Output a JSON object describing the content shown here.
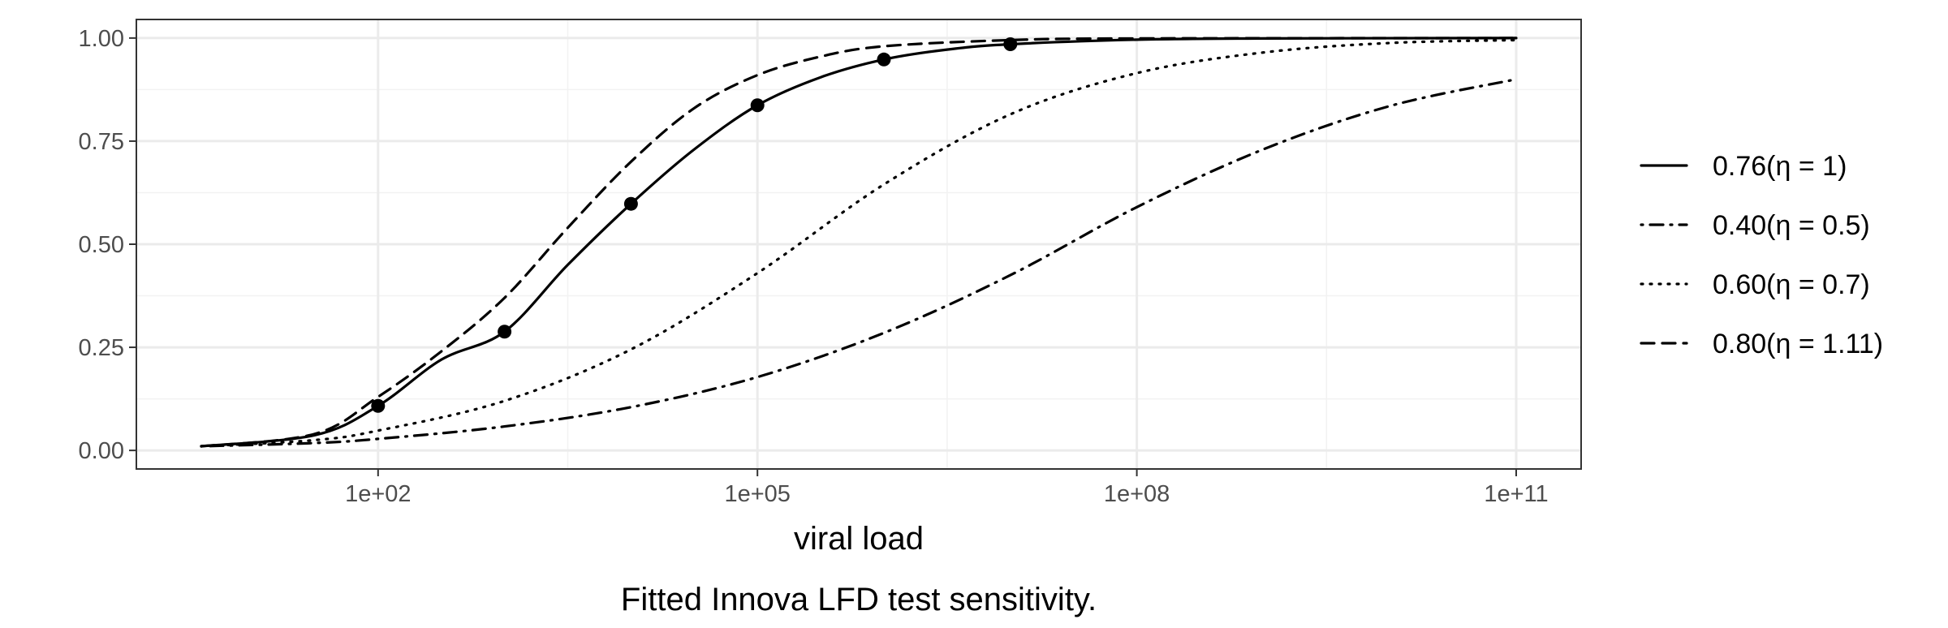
{
  "caption": "Fitted Innova LFD test sensitivity.",
  "chart_data": {
    "type": "line",
    "title": "",
    "xlabel": "viral load",
    "ylabel": "",
    "x_scale": "log10",
    "xlim": [
      4.0,
      100000000000.0
    ],
    "ylim": [
      0.0,
      1.0
    ],
    "x_ticks": [
      100,
      100000,
      100000000,
      100000000000
    ],
    "x_tick_labels": [
      "1e+02",
      "1e+05",
      "1e+08",
      "1e+11"
    ],
    "y_ticks": [
      0.0,
      0.25,
      0.5,
      0.75,
      1.0
    ],
    "y_tick_labels": [
      "0.00",
      "0.25",
      "0.50",
      "0.75",
      "1.00"
    ],
    "grid": true,
    "legend_position": "right",
    "series": [
      {
        "name": "0.76(η = 1)",
        "line_style": "solid",
        "points": [
          [
            4,
            0.01
          ],
          [
            31.6,
            0.037
          ],
          [
            100,
            0.108
          ],
          [
            316,
            0.22
          ],
          [
            1000,
            0.288
          ],
          [
            3162,
            0.45
          ],
          [
            10000,
            0.598
          ],
          [
            31623,
            0.73
          ],
          [
            100000,
            0.837
          ],
          [
            316228,
            0.905
          ],
          [
            1000000,
            0.948
          ],
          [
            3162278,
            0.972
          ],
          [
            10000000,
            0.985
          ],
          [
            100000000,
            0.996
          ],
          [
            1000000000,
            0.999
          ],
          [
            100000000000,
            1.0
          ]
        ],
        "markers": [
          [
            100,
            0.108
          ],
          [
            1000,
            0.288
          ],
          [
            10000,
            0.598
          ],
          [
            100000,
            0.837
          ],
          [
            1000000,
            0.948
          ],
          [
            10000000,
            0.985
          ]
        ]
      },
      {
        "name": "0.40(η = 0.5)",
        "line_style": "dotdash",
        "points": [
          [
            4,
            0.01
          ],
          [
            31.6,
            0.018
          ],
          [
            100,
            0.028
          ],
          [
            1000,
            0.058
          ],
          [
            10000,
            0.105
          ],
          [
            100000,
            0.178
          ],
          [
            1000000,
            0.285
          ],
          [
            10000000,
            0.425
          ],
          [
            100000000,
            0.59
          ],
          [
            1000000000,
            0.73
          ],
          [
            10000000000,
            0.835
          ],
          [
            100000000000,
            0.9
          ]
        ],
        "markers": []
      },
      {
        "name": "0.60(η = 0.7)",
        "line_style": "dotted",
        "points": [
          [
            4,
            0.01
          ],
          [
            31.6,
            0.025
          ],
          [
            100,
            0.048
          ],
          [
            1000,
            0.12
          ],
          [
            10000,
            0.245
          ],
          [
            100000,
            0.43
          ],
          [
            1000000,
            0.645
          ],
          [
            10000000,
            0.815
          ],
          [
            100000000,
            0.915
          ],
          [
            1000000000,
            0.965
          ],
          [
            10000000000,
            0.988
          ],
          [
            100000000000,
            0.995
          ]
        ],
        "markers": []
      },
      {
        "name": "0.80(η = 1.11)",
        "line_style": "dashed",
        "points": [
          [
            4,
            0.01
          ],
          [
            31.6,
            0.04
          ],
          [
            100,
            0.13
          ],
          [
            316,
            0.24
          ],
          [
            1000,
            0.37
          ],
          [
            3162,
            0.54
          ],
          [
            10000,
            0.7
          ],
          [
            31623,
            0.83
          ],
          [
            100000,
            0.91
          ],
          [
            316228,
            0.955
          ],
          [
            1000000,
            0.98
          ],
          [
            10000000,
            0.995
          ],
          [
            100000000,
            0.999
          ],
          [
            100000000000,
            1.0
          ]
        ],
        "markers": []
      }
    ]
  }
}
